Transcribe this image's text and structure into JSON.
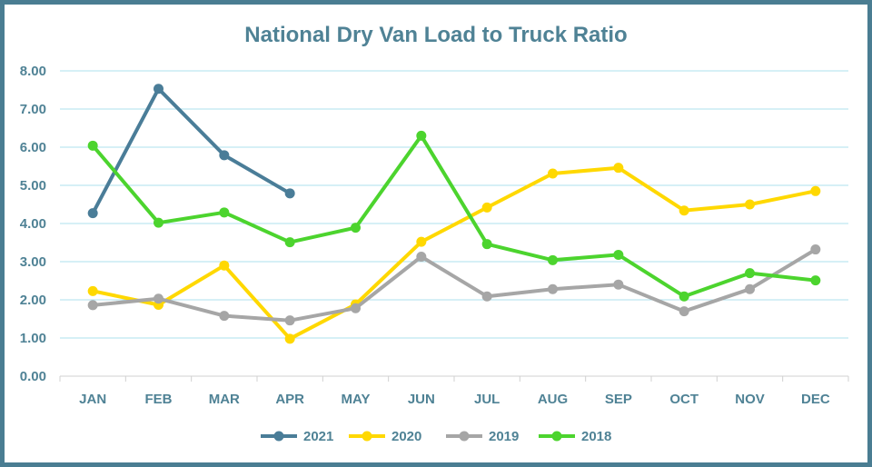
{
  "chart_data": {
    "type": "line",
    "title": "National Dry Van Load to Truck Ratio",
    "xlabel": "",
    "ylabel": "",
    "categories": [
      "JAN",
      "FEB",
      "MAR",
      "APR",
      "MAY",
      "JUN",
      "JUL",
      "AUG",
      "SEP",
      "OCT",
      "NOV",
      "DEC"
    ],
    "ylim": [
      0,
      8
    ],
    "yticks": [
      "0.00",
      "1.00",
      "2.00",
      "3.00",
      "4.00",
      "5.00",
      "6.00",
      "7.00",
      "8.00"
    ],
    "grid": true,
    "legend_position": "bottom",
    "series": [
      {
        "name": "2021",
        "color": "#4a7d98",
        "values": [
          4.27,
          7.53,
          5.79,
          4.79,
          null,
          null,
          null,
          null,
          null,
          null,
          null,
          null
        ]
      },
      {
        "name": "2020",
        "color": "#ffd800",
        "values": [
          2.23,
          1.87,
          2.9,
          0.98,
          1.88,
          3.52,
          4.42,
          5.31,
          5.46,
          4.34,
          4.5,
          4.85
        ]
      },
      {
        "name": "2019",
        "color": "#a6a6a6",
        "values": [
          1.86,
          2.03,
          1.58,
          1.46,
          1.78,
          3.13,
          2.09,
          2.28,
          2.4,
          1.7,
          2.28,
          3.32
        ]
      },
      {
        "name": "2018",
        "color": "#4cd42e",
        "values": [
          6.04,
          4.02,
          4.29,
          3.51,
          3.89,
          6.3,
          3.46,
          3.04,
          3.18,
          2.09,
          2.7,
          2.51
        ]
      }
    ]
  }
}
